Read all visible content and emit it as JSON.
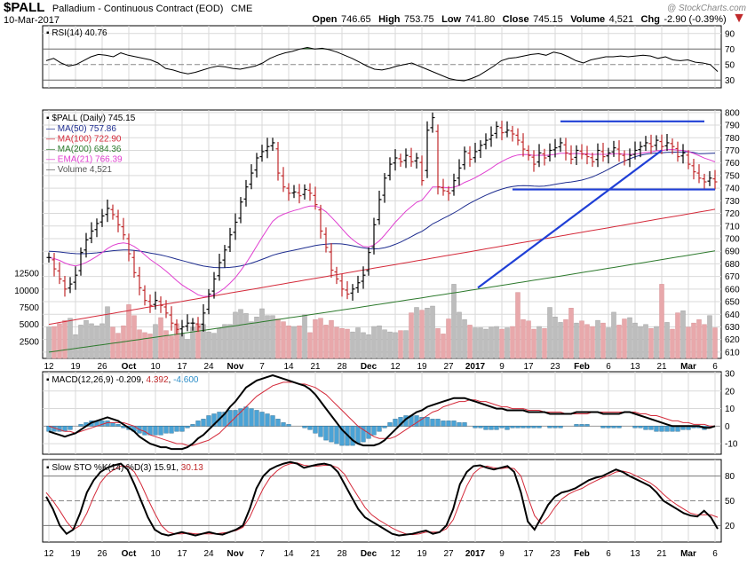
{
  "header": {
    "symbol": "$PALL",
    "name": "Palladium - Continuous Contract (EOD)",
    "exchange": "CME",
    "date": "10-Mar-2017",
    "open_label": "Open",
    "open": "746.65",
    "high_label": "High",
    "high": "753.75",
    "low_label": "Low",
    "low": "741.80",
    "close_label": "Close",
    "close": "745.15",
    "volume_label": "Volume",
    "volume": "4,521",
    "chg_label": "Chg",
    "chg": "-2.90 (-0.39%)",
    "watermark": "@ StockCharts.com"
  },
  "colors": {
    "up": "#000000",
    "down": "#c0292b",
    "ma50": "#1e2d8f",
    "ma100": "#d42a3a",
    "ma200": "#2d7a2d",
    "ema21": "#e040d0",
    "trend": "#1f3fd6",
    "vol_up": "#bdbdbd",
    "vol_down": "#e8a8ab",
    "macd_hist": "#4aa3d6",
    "grid": "#d9d9d9"
  },
  "chart_data": [
    {
      "type": "line",
      "name": "rsi",
      "label": "RSI(14) 40.76",
      "y_ticks": [
        "90",
        "70",
        "50",
        "30"
      ],
      "ylim": [
        20,
        100
      ],
      "overbought": 70,
      "oversold": 30,
      "values": [
        55,
        58,
        52,
        48,
        50,
        55,
        60,
        63,
        62,
        60,
        65,
        62,
        60,
        58,
        56,
        52,
        45,
        43,
        40,
        38,
        40,
        43,
        46,
        48,
        47,
        45,
        44,
        46,
        48,
        52,
        58,
        62,
        65,
        67,
        70,
        72,
        70,
        71,
        69,
        66,
        62,
        58,
        53,
        48,
        44,
        43,
        45,
        48,
        50,
        52,
        48,
        44,
        40,
        36,
        32,
        30,
        29,
        32,
        36,
        42,
        48,
        55,
        58,
        59,
        61,
        63,
        64,
        62,
        66,
        64,
        60,
        55,
        52,
        56,
        58,
        60,
        60,
        61,
        60,
        61,
        62,
        61,
        58,
        60,
        56,
        55,
        56,
        53,
        52,
        50,
        41
      ]
    },
    {
      "type": "candlestick",
      "name": "price",
      "label": "$PALL (Daily) 745.15",
      "y_ticks": [
        "800",
        "790",
        "780",
        "770",
        "760",
        "750",
        "740",
        "730",
        "720",
        "710",
        "700",
        "690",
        "680",
        "670",
        "660",
        "650",
        "640",
        "630",
        "620",
        "610"
      ],
      "ylim": [
        605,
        802
      ],
      "volume_ticks": [
        "12500",
        "10000",
        "7500",
        "5000",
        "2500"
      ],
      "volume_max": 15000,
      "x_labels": [
        "12",
        "19",
        "26",
        "Oct",
        "10",
        "17",
        "24",
        "Nov",
        "7",
        "14",
        "21",
        "28",
        "Dec",
        "12",
        "19",
        "27",
        "2017",
        "9",
        "17",
        "23",
        "Feb",
        "6",
        "13",
        "21",
        "Mar",
        "6"
      ],
      "x_label_index": [
        0,
        5,
        10,
        15,
        20,
        25,
        30,
        35,
        40,
        45,
        50,
        55,
        60,
        65,
        70,
        75,
        80,
        85,
        90,
        95,
        100,
        105,
        110,
        115,
        120,
        125
      ],
      "bold_labels": [
        "Oct",
        "Nov",
        "Dec",
        "2017",
        "Feb",
        "Mar"
      ],
      "legend": [
        {
          "key": "ma50",
          "text": "MA(50) 757.86"
        },
        {
          "key": "ma100",
          "text": "MA(100) 722.90"
        },
        {
          "key": "ma200",
          "text": "MA(200) 684.36"
        },
        {
          "key": "ema21",
          "text": "EMA(21) 766.39"
        },
        {
          "key": "vol",
          "text": "Volume 4,521"
        }
      ],
      "close": [
        685,
        676,
        668,
        660,
        664,
        671,
        689,
        699,
        706,
        712,
        718,
        724,
        719,
        711,
        703,
        688,
        673,
        661,
        651,
        647,
        651,
        647,
        641,
        633,
        628,
        630,
        633,
        633,
        630,
        641,
        656,
        668,
        681,
        691,
        703,
        713,
        729,
        741,
        752,
        764,
        769,
        773,
        776,
        752,
        741,
        736,
        737,
        734,
        739,
        736,
        727,
        706,
        693,
        675,
        668,
        660,
        656,
        660,
        665,
        671,
        689,
        711,
        731,
        748,
        759,
        764,
        761,
        766,
        761,
        764,
        746,
        786,
        796,
        741,
        738,
        736,
        746,
        756,
        769,
        763,
        769,
        774,
        778,
        782,
        789,
        784,
        786,
        783,
        778,
        771,
        766,
        759,
        768,
        764,
        770,
        772,
        776,
        768,
        763,
        770,
        767,
        765,
        761,
        770,
        765,
        768,
        772,
        767,
        762,
        766,
        770,
        773,
        776,
        773,
        778,
        773,
        776,
        773,
        765,
        768,
        759,
        753,
        748,
        745,
        748,
        745
      ],
      "volume": [
        4600,
        4700,
        5100,
        5600,
        5900,
        3500,
        4900,
        5600,
        5100,
        4800,
        5100,
        7600,
        4600,
        3700,
        4800,
        7900,
        6300,
        4200,
        3800,
        3600,
        5000,
        6000,
        4100,
        3300,
        5100,
        3600,
        2800,
        4600,
        5100,
        5000,
        3900,
        3700,
        4400,
        5000,
        5000,
        6800,
        7200,
        6600,
        5400,
        6100,
        7300,
        6300,
        6300,
        5800,
        5400,
        4800,
        4700,
        4800,
        6400,
        3800,
        5700,
        5900,
        4900,
        5600,
        4600,
        4400,
        4300,
        3900,
        4500,
        3800,
        3500,
        4700,
        4800,
        4200,
        3900,
        3800,
        4100,
        4100,
        6700,
        7500,
        7100,
        7400,
        7700,
        4400,
        3600,
        5800,
        10900,
        6800,
        5700,
        4900,
        4500,
        4500,
        4300,
        4600,
        4700,
        4300,
        4500,
        4700,
        9700,
        5700,
        5500,
        4300,
        4700,
        4400,
        7500,
        6100,
        5300,
        5700,
        7400,
        5200,
        5500,
        5000,
        4700,
        5600,
        5200,
        4500,
        6800,
        4900,
        5800,
        6000,
        5200,
        4700,
        5000,
        4400,
        4700,
        10900,
        5300,
        4300,
        6700,
        7000,
        4600,
        5200,
        5700,
        5000,
        6300,
        4500
      ]
    },
    {
      "type": "line",
      "name": "macd",
      "label_prefix": "MACD(12,26,9)",
      "macd_value": "-0.209",
      "signal_value": "4.392",
      "hist_value": "-4.600",
      "y_ticks": [
        "30",
        "20",
        "10",
        "0",
        "-10"
      ],
      "ylim": [
        -16,
        31
      ],
      "macd": [
        -3,
        -4,
        -5,
        -6,
        -5,
        -4,
        -2,
        0,
        2,
        3,
        4,
        5,
        4,
        3,
        1,
        -1,
        -3,
        -6,
        -8,
        -10,
        -11,
        -12,
        -12,
        -13,
        -13,
        -13,
        -12,
        -10,
        -7,
        -5,
        -2,
        1,
        4,
        7,
        11,
        14,
        18,
        22,
        24,
        26,
        27,
        28,
        29,
        28,
        27,
        26,
        25,
        24,
        23,
        21,
        18,
        14,
        10,
        6,
        2,
        -2,
        -5,
        -8,
        -10,
        -11,
        -11,
        -11,
        -10,
        -8,
        -5,
        -2,
        1,
        4,
        6,
        8,
        9,
        11,
        12,
        13,
        14,
        15,
        16,
        16,
        16,
        15,
        14,
        13,
        12,
        11,
        10,
        10,
        9,
        9,
        9,
        9,
        8,
        8,
        8,
        8,
        7,
        7,
        7,
        7,
        7,
        8,
        8,
        8,
        8,
        8,
        7,
        7,
        7,
        7,
        8,
        8,
        7,
        6,
        5,
        4,
        3,
        2,
        1,
        0,
        0,
        0,
        0,
        0,
        0,
        -1,
        -1,
        0
      ],
      "signal": [
        0,
        -1,
        -2,
        -3,
        -3,
        -4,
        -3,
        -2,
        -1,
        0,
        1,
        2,
        2,
        2,
        2,
        1,
        0,
        -2,
        -3,
        -5,
        -6,
        -7,
        -8,
        -9,
        -10,
        -10,
        -11,
        -11,
        -10,
        -9,
        -8,
        -6,
        -4,
        -1,
        2,
        5,
        8,
        11,
        14,
        17,
        19,
        21,
        23,
        24,
        25,
        25,
        25,
        24,
        24,
        23,
        22,
        20,
        18,
        15,
        12,
        9,
        6,
        3,
        0,
        -2,
        -4,
        -6,
        -7,
        -7,
        -7,
        -6,
        -4,
        -2,
        0,
        2,
        4,
        6,
        8,
        9,
        11,
        12,
        13,
        14,
        14,
        15,
        15,
        14,
        14,
        13,
        12,
        11,
        11,
        10,
        10,
        10,
        9,
        9,
        9,
        8,
        8,
        8,
        8,
        7,
        7,
        7,
        7,
        7,
        8,
        8,
        8,
        8,
        8,
        8,
        8,
        8,
        8,
        7,
        7,
        6,
        6,
        5,
        4,
        3,
        3,
        2,
        2,
        1,
        1,
        1,
        0,
        0
      ]
    },
    {
      "type": "line",
      "name": "slow-sto",
      "label_prefix": "Slow STO %K(14) %D(3)",
      "k_value": "15.91",
      "d_value": "30.13",
      "y_ticks": [
        "80",
        "50",
        "20"
      ],
      "ylim": [
        0,
        100
      ],
      "k": [
        55,
        40,
        20,
        10,
        15,
        35,
        60,
        75,
        85,
        90,
        93,
        95,
        88,
        70,
        50,
        30,
        15,
        10,
        8,
        10,
        12,
        10,
        8,
        10,
        12,
        10,
        9,
        12,
        15,
        20,
        40,
        65,
        80,
        88,
        92,
        95,
        97,
        95,
        90,
        92,
        94,
        95,
        93,
        85,
        70,
        55,
        40,
        30,
        25,
        20,
        15,
        10,
        8,
        9,
        10,
        12,
        14,
        10,
        12,
        20,
        40,
        70,
        85,
        92,
        93,
        90,
        88,
        90,
        92,
        85,
        60,
        25,
        15,
        30,
        45,
        55,
        60,
        62,
        65,
        70,
        75,
        78,
        80,
        84,
        88,
        85,
        80,
        76,
        72,
        68,
        60,
        50,
        45,
        40,
        35,
        32,
        31,
        38,
        30,
        16
      ],
      "d": [
        60,
        50,
        38,
        25,
        15,
        20,
        35,
        55,
        72,
        82,
        88,
        92,
        92,
        85,
        70,
        52,
        35,
        20,
        12,
        10,
        10,
        11,
        10,
        10,
        10,
        10,
        11,
        12,
        14,
        18,
        30,
        48,
        65,
        78,
        86,
        92,
        95,
        96,
        93,
        92,
        92,
        93,
        93,
        90,
        82,
        68,
        55,
        42,
        33,
        27,
        22,
        17,
        13,
        10,
        9,
        10,
        12,
        12,
        12,
        16,
        27,
        48,
        68,
        83,
        90,
        92,
        90,
        89,
        90,
        89,
        80,
        55,
        32,
        22,
        30,
        42,
        52,
        58,
        62,
        65,
        70,
        74,
        78,
        81,
        85,
        86,
        84,
        80,
        76,
        72,
        66,
        58,
        51,
        45,
        40,
        35,
        33,
        33,
        33,
        30
      ]
    }
  ]
}
